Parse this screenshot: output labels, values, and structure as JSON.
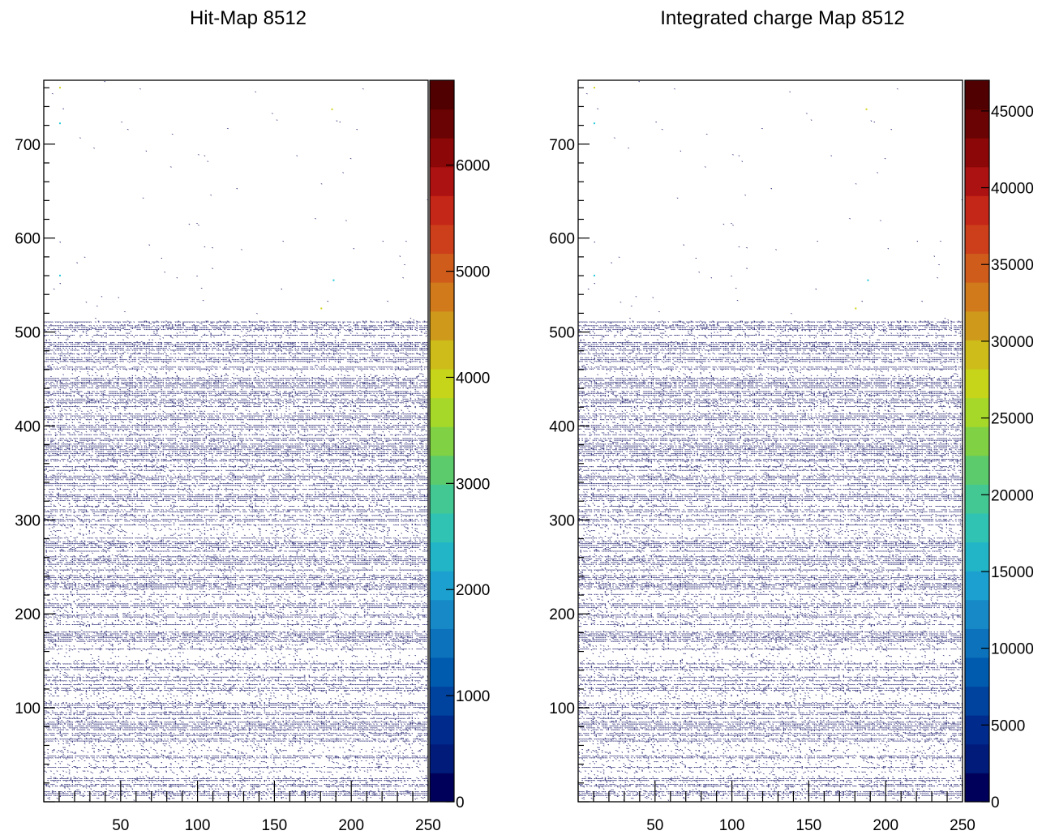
{
  "chart_data": [
    {
      "type": "heatmap",
      "title": "Hit-Map 8512",
      "xlim": [
        0,
        250
      ],
      "ylim": [
        0,
        768
      ],
      "x_ticks": [
        "50",
        "100",
        "150",
        "200",
        "250"
      ],
      "y_ticks": [
        "100",
        "200",
        "300",
        "400",
        "500",
        "600",
        "700"
      ],
      "z_range": [
        0,
        6800
      ],
      "z_ticks": [
        "0",
        "1000",
        "2000",
        "3000",
        "4000",
        "5000",
        "6000"
      ],
      "occupancy": {
        "dense_region_y": [
          0,
          512
        ],
        "sparse_region_y": [
          512,
          768
        ],
        "typical_value": "near 0 (dark blue)",
        "notable_hot_pixels": [
          {
            "x": 10,
            "y": 760,
            "level": "yellow"
          },
          {
            "x": 10,
            "y": 722,
            "level": "cyan"
          },
          {
            "x": 187,
            "y": 737,
            "level": "yellow"
          },
          {
            "x": 188,
            "y": 555,
            "level": "cyan"
          },
          {
            "x": 180,
            "y": 525,
            "level": "yellow"
          },
          {
            "x": 10,
            "y": 560,
            "level": "cyan"
          }
        ]
      }
    },
    {
      "type": "heatmap",
      "title": "Integrated charge Map 8512",
      "xlim": [
        0,
        250
      ],
      "ylim": [
        0,
        768
      ],
      "x_ticks": [
        "50",
        "100",
        "150",
        "200",
        "250"
      ],
      "y_ticks": [
        "100",
        "200",
        "300",
        "400",
        "500",
        "600",
        "700"
      ],
      "z_range": [
        0,
        47000
      ],
      "z_ticks": [
        "0",
        "5000",
        "10000",
        "15000",
        "20000",
        "25000",
        "30000",
        "35000",
        "40000",
        "45000"
      ],
      "occupancy": {
        "dense_region_y": [
          0,
          512
        ],
        "sparse_region_y": [
          512,
          768
        ],
        "typical_value": "near 0 (dark blue)",
        "notable_hot_pixels": [
          {
            "x": 10,
            "y": 760,
            "level": "yellow"
          },
          {
            "x": 10,
            "y": 722,
            "level": "cyan"
          },
          {
            "x": 187,
            "y": 737,
            "level": "yellow"
          },
          {
            "x": 188,
            "y": 555,
            "level": "cyan"
          },
          {
            "x": 180,
            "y": 525,
            "level": "yellow"
          },
          {
            "x": 10,
            "y": 560,
            "level": "cyan"
          }
        ]
      }
    }
  ],
  "palette": [
    "#00005a",
    "#001b7a",
    "#002b8c",
    "#00439e",
    "#005aad",
    "#0c72bc",
    "#1789c7",
    "#1ba0cf",
    "#22b5c8",
    "#30c2b3",
    "#44c893",
    "#5ccb6c",
    "#81d145",
    "#a6d82a",
    "#c6d41a",
    "#cdbc1a",
    "#cf9a1b",
    "#d07a1c",
    "#d05c1c",
    "#cc3f1a",
    "#c42617",
    "#ad1212",
    "#8c0707",
    "#6a0303",
    "#500000"
  ]
}
